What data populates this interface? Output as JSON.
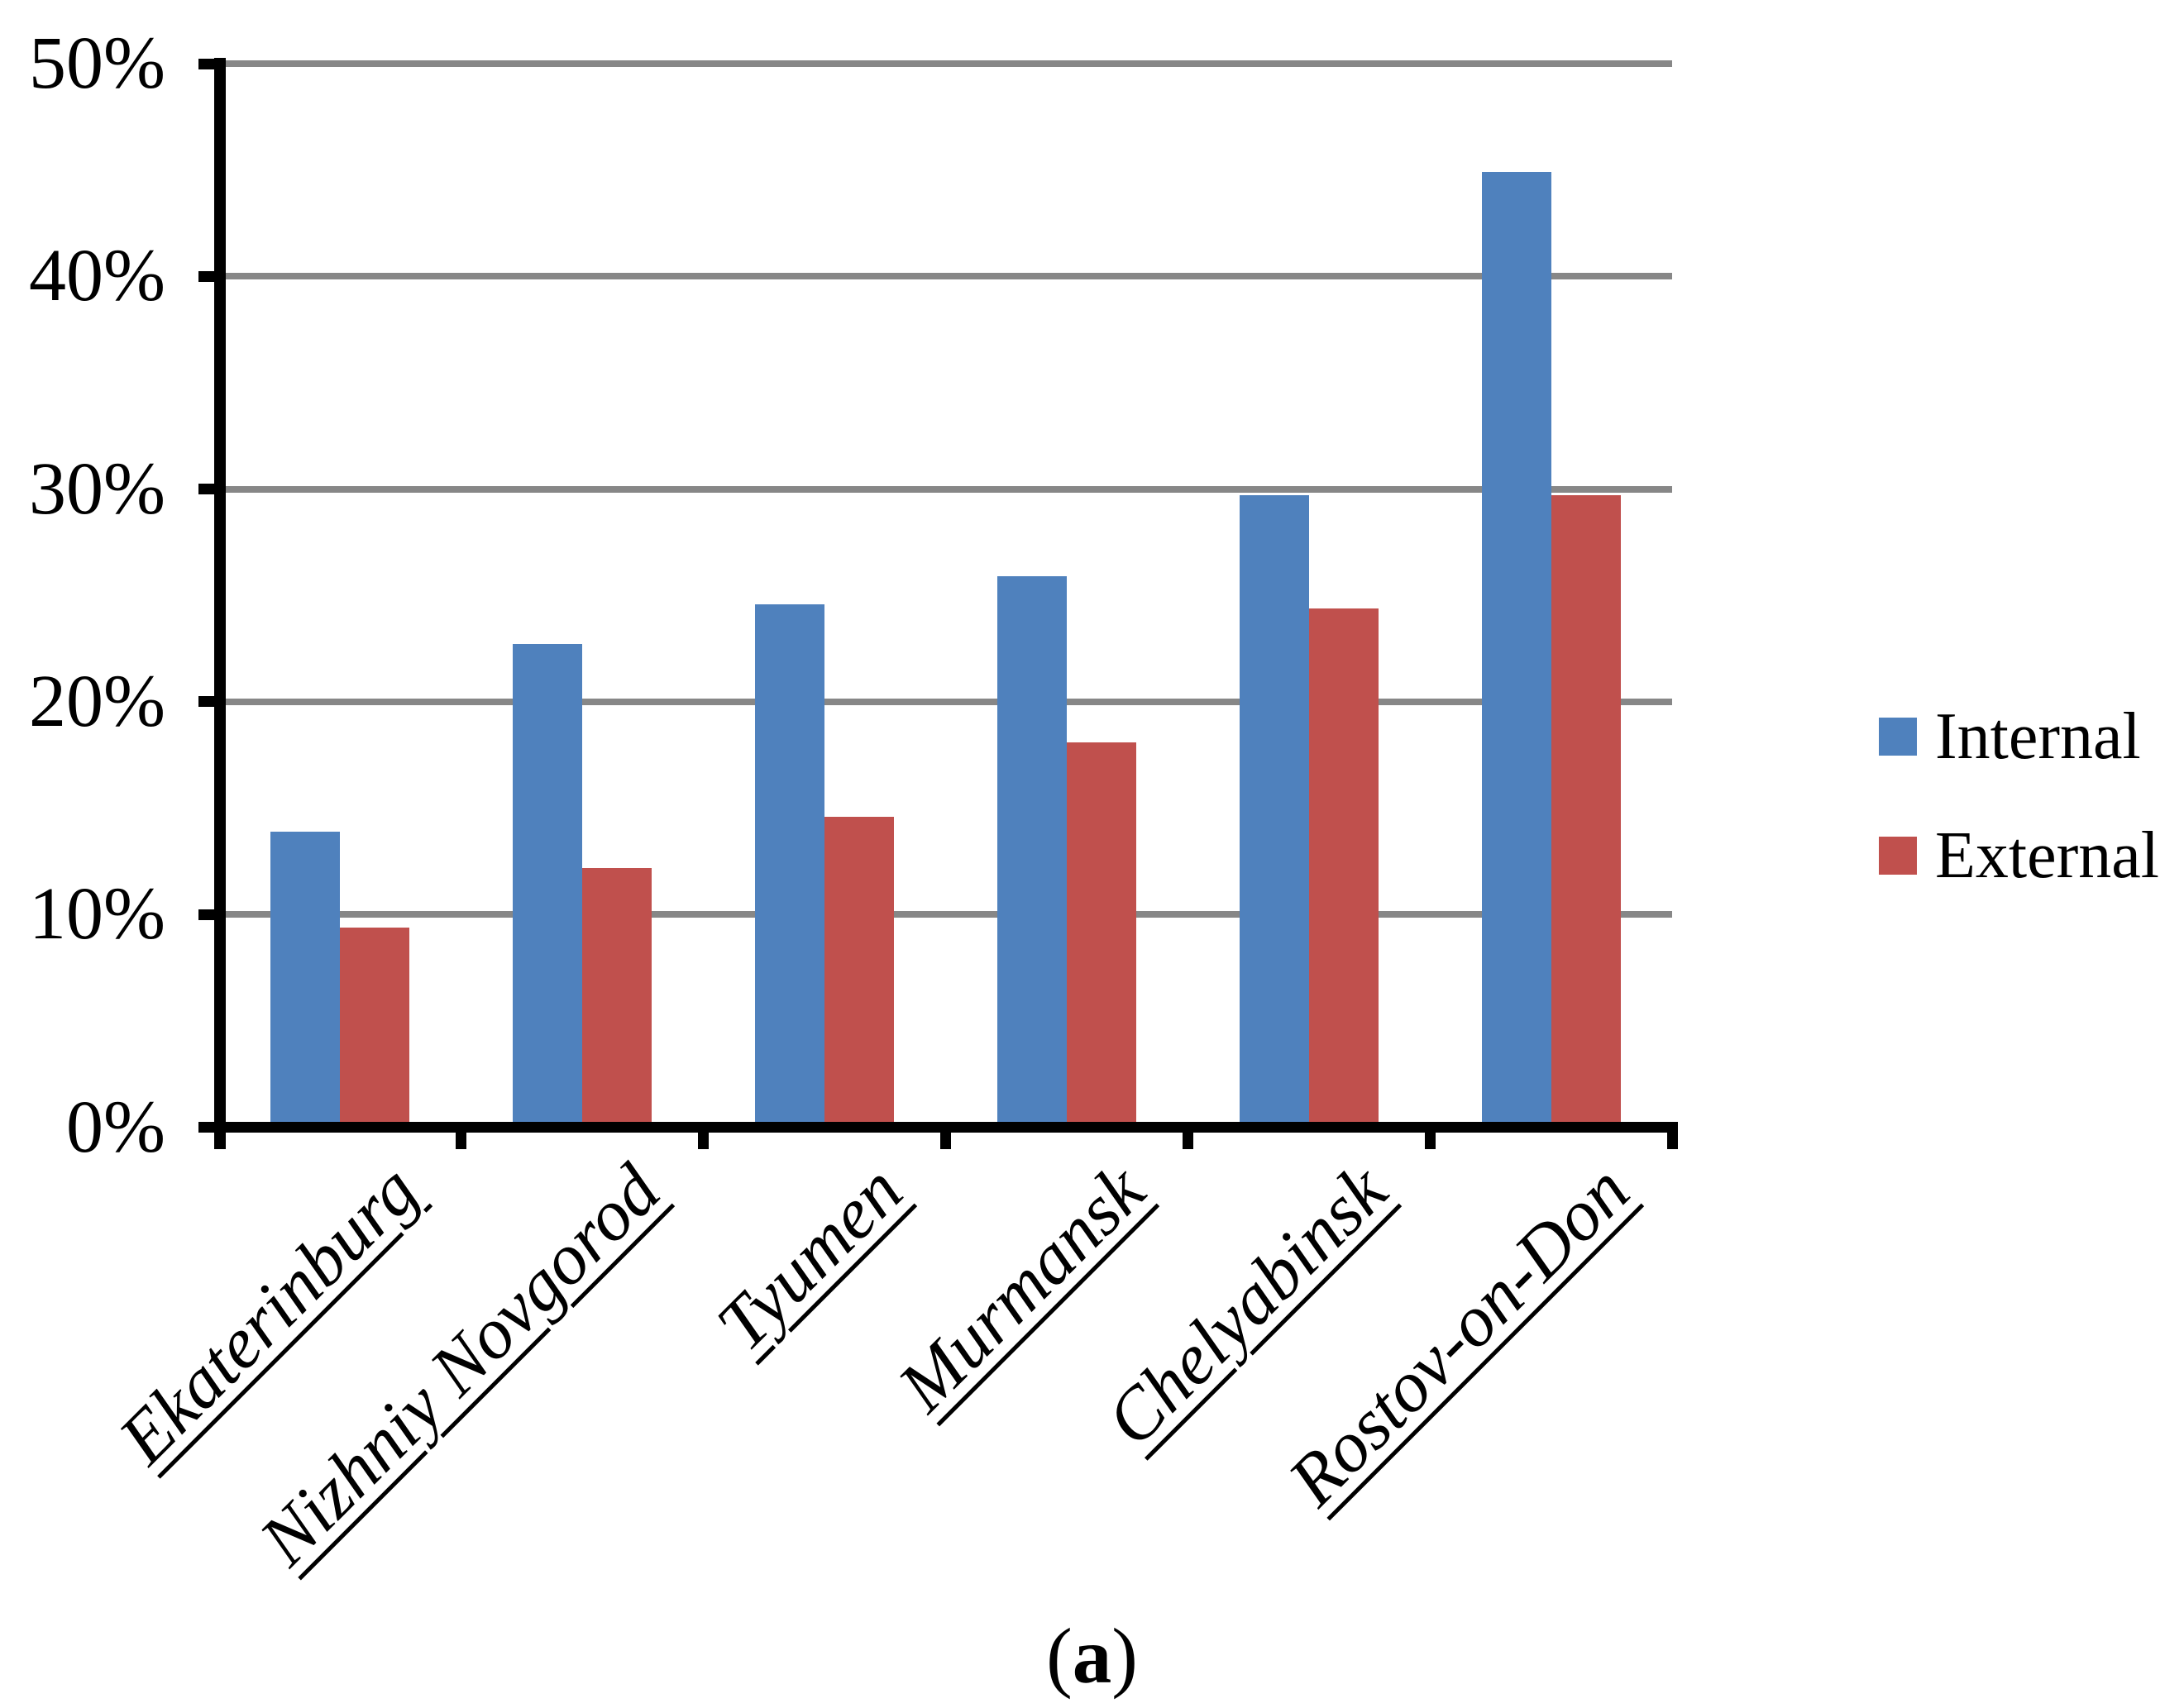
{
  "figure": {
    "caption": {
      "prefix": "(",
      "label": "a",
      "suffix": ")",
      "text": "(a)"
    }
  },
  "chart_data": {
    "type": "bar",
    "title": "",
    "xlabel": "",
    "ylabel": "",
    "categories": [
      "Ekaterinburg",
      "Nizhniy Novgorod",
      "Tyumen",
      "Murmansk",
      "Chelyabinsk",
      "Rostov-on-Don"
    ],
    "series": [
      {
        "name": "Internal",
        "color": "#4F81BD",
        "values": [
          13.9,
          22.7,
          24.6,
          25.9,
          29.7,
          44.9
        ]
      },
      {
        "name": "External",
        "color": "#C0504D",
        "values": [
          9.4,
          12.2,
          14.6,
          18.1,
          24.4,
          29.7
        ]
      }
    ],
    "ylim": [
      0,
      50
    ],
    "ytick_step": 10,
    "ytick_labels": [
      "0%",
      "10%",
      "20%",
      "30%",
      "40%",
      "50%"
    ],
    "grid": "horizontal-major",
    "gridline_color": "#878787",
    "axis_color": "#000000",
    "background": "#FFFFFF",
    "legend_position": "right",
    "xlabel_style": "italic-underline-rotated-45",
    "bar_layout": "grouped-touching"
  }
}
